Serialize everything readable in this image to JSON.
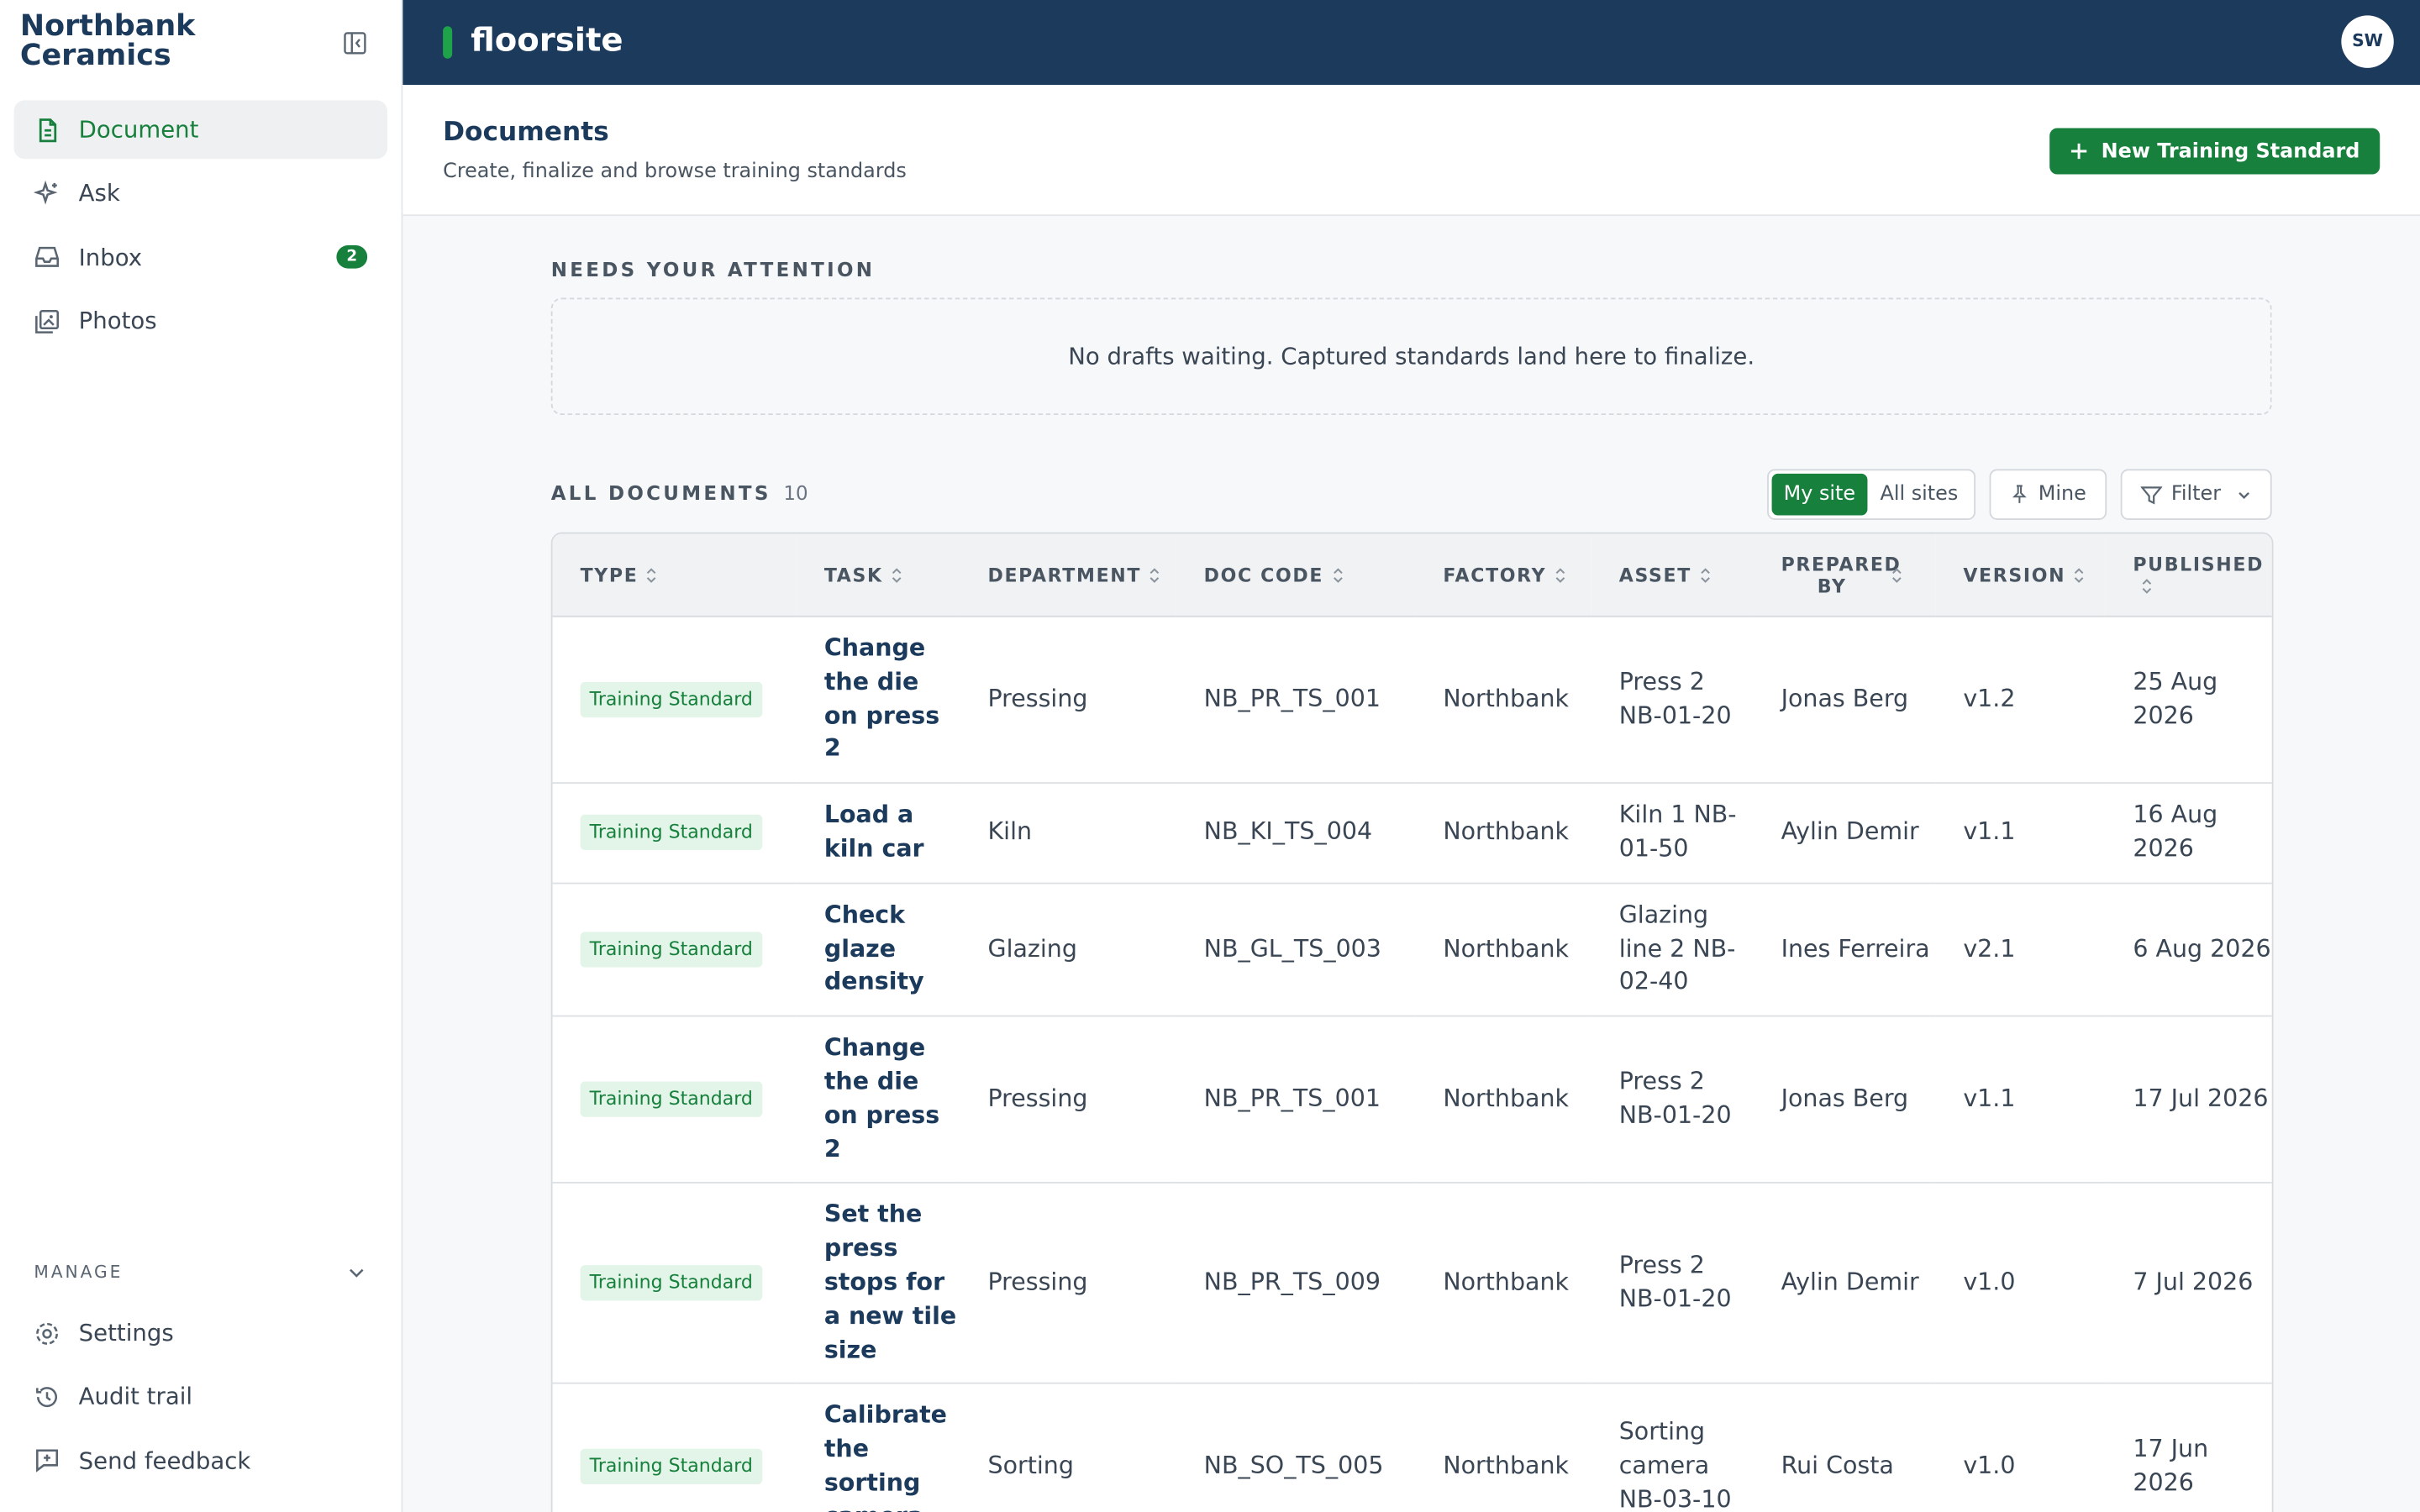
{
  "sidebar": {
    "brand": "Northbank Ceramics",
    "nav": [
      {
        "label": "Document"
      },
      {
        "label": "Ask"
      },
      {
        "label": "Inbox",
        "badge": "2"
      },
      {
        "label": "Photos"
      }
    ],
    "manage": {
      "label": "MANAGE",
      "items": [
        {
          "label": "Settings"
        },
        {
          "label": "Audit trail"
        },
        {
          "label": "Send feedback"
        }
      ]
    }
  },
  "header": {
    "app": "floorsite",
    "avatar": "SW"
  },
  "page": {
    "title": "Documents",
    "subtitle": "Create, finalize and browse training standards",
    "new_button": "New Training Standard"
  },
  "attention": {
    "label": "NEEDS YOUR ATTENTION",
    "empty": "No drafts waiting. Captured standards land here to finalize."
  },
  "all_documents": {
    "label": "ALL DOCUMENTS",
    "count": "10",
    "toggle": [
      "My site",
      "All sites"
    ],
    "mine": "Mine",
    "filter": "Filter"
  },
  "table": {
    "columns": [
      "TYPE",
      "TASK",
      "DEPARTMENT",
      "DOC CODE",
      "FACTORY",
      "ASSET",
      "PREPARED BY",
      "VERSION",
      "PUBLISHED"
    ],
    "rows": [
      [
        "Training Standard",
        "Change the die on press 2",
        "Pressing",
        "NB_PR_TS_001",
        "Northbank",
        "Press 2 NB-01-20",
        "Jonas Berg",
        "v1.2",
        "25 Aug 2026"
      ],
      [
        "Training Standard",
        "Load a kiln car",
        "Kiln",
        "NB_KI_TS_004",
        "Northbank",
        "Kiln 1 NB-01-50",
        "Aylin Demir",
        "v1.1",
        "16 Aug 2026"
      ],
      [
        "Training Standard",
        "Check glaze density",
        "Glazing",
        "NB_GL_TS_003",
        "Northbank",
        "Glazing line 2 NB-02-40",
        "Ines Ferreira",
        "v2.1",
        "6 Aug 2026"
      ],
      [
        "Training Standard",
        "Change the die on press 2",
        "Pressing",
        "NB_PR_TS_001",
        "Northbank",
        "Press 2 NB-01-20",
        "Jonas Berg",
        "v1.1",
        "17 Jul 2026"
      ],
      [
        "Training Standard",
        "Set the press stops for a new tile size",
        "Pressing",
        "NB_PR_TS_009",
        "Northbank",
        "Press 2 NB-01-20",
        "Aylin Demir",
        "v1.0",
        "7 Jul 2026"
      ],
      [
        "Training Standard",
        "Calibrate the sorting camera",
        "Sorting",
        "NB_SO_TS_005",
        "Northbank",
        "Sorting camera NB-03-10",
        "Rui Costa",
        "v1.0",
        "17 Jun 2026"
      ]
    ]
  }
}
